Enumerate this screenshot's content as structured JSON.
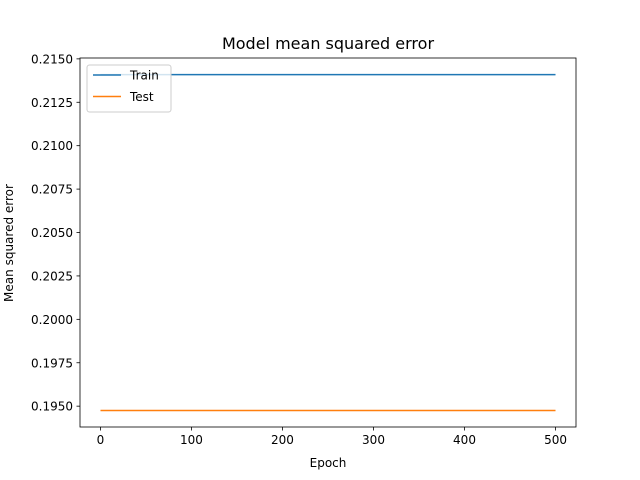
{
  "chart_data": {
    "type": "line",
    "title": "Model mean squared error",
    "xlabel": "Epoch",
    "ylabel": "Mean squared error",
    "xlim": [
      -22.5,
      522.5
    ],
    "ylim": [
      0.1938,
      0.21505
    ],
    "x_ticks": [
      0,
      100,
      200,
      300,
      400,
      500
    ],
    "y_ticks": [
      0.195,
      0.1975,
      0.2,
      0.2025,
      0.205,
      0.2075,
      0.21,
      0.2125,
      0.215
    ],
    "x_tick_labels": [
      "0",
      "100",
      "200",
      "300",
      "400",
      "500"
    ],
    "y_tick_labels": [
      "0.1950",
      "0.1975",
      "0.2000",
      "0.2025",
      "0.2050",
      "0.2075",
      "0.2100",
      "0.2125",
      "0.2150"
    ],
    "grid": false,
    "legend_position": "top-left",
    "series": [
      {
        "name": "Train",
        "color": "#1f77b4",
        "x": [
          0,
          500
        ],
        "y": [
          0.21409,
          0.21409
        ]
      },
      {
        "name": "Test",
        "color": "#ff7f0e",
        "x": [
          0,
          500
        ],
        "y": [
          0.19475,
          0.19475
        ]
      }
    ]
  }
}
